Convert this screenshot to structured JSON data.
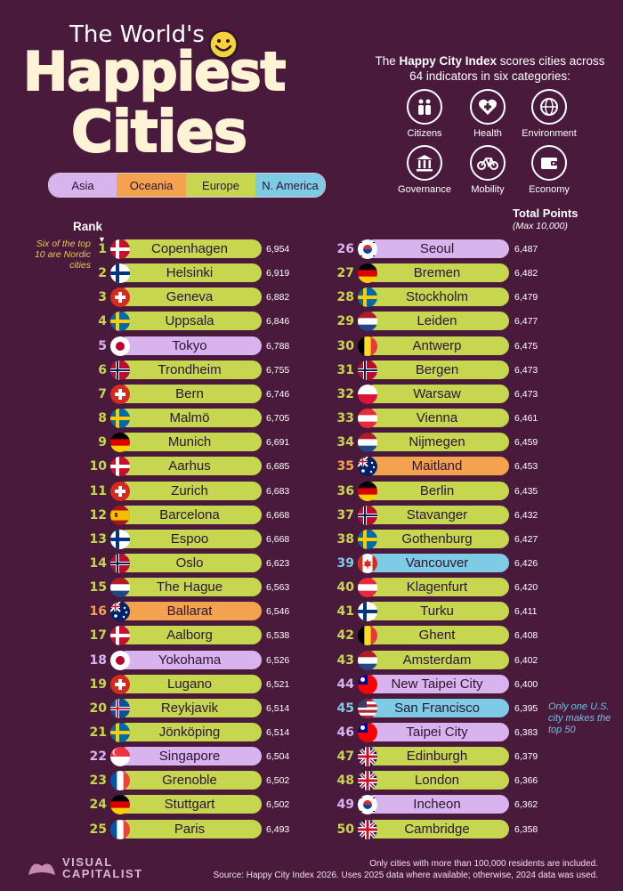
{
  "header": {
    "title_small": "The World's",
    "title_big_1": "Happiest",
    "title_big_2": "Cities"
  },
  "intro": {
    "prefix": "The ",
    "bold": "Happy City Index",
    "rest": " scores cities across 64 indicators in six categories:"
  },
  "categories": [
    {
      "label": "Citizens",
      "icon": "citizens-icon"
    },
    {
      "label": "Health",
      "icon": "health-icon"
    },
    {
      "label": "Environment",
      "icon": "environment-icon"
    },
    {
      "label": "Governance",
      "icon": "governance-icon"
    },
    {
      "label": "Mobility",
      "icon": "mobility-icon"
    },
    {
      "label": "Economy",
      "icon": "economy-icon"
    }
  ],
  "legend": [
    {
      "label": "Asia",
      "color": "#d9b3ee"
    },
    {
      "label": "Oceania",
      "color": "#f4a24e"
    },
    {
      "label": "Europe",
      "color": "#c6d64f"
    },
    {
      "label": "N. America",
      "color": "#7ecbe6"
    }
  ],
  "annotations": {
    "rank_header": "Rank",
    "total_points_header": "Total Points",
    "total_points_sub": "(Max 10,000)",
    "nordic_note": "Six of the top 10 are Nordic cities",
    "us_note": "Only one U.S. city makes the top 50"
  },
  "footer": {
    "brand_1": "VISUAL",
    "brand_2": "CAPITALIST",
    "note": "Only cities with more than 100,000 residents are included.",
    "source": "Source: Happy City Index 2026. Uses 2025 data where available; otherwise, 2024 data was used."
  },
  "chart_data": {
    "type": "table",
    "max_points": 10000,
    "rows": [
      {
        "rank": 1,
        "city": "Copenhagen",
        "points": 6954,
        "region": "Europe",
        "flag": "denmark"
      },
      {
        "rank": 2,
        "city": "Helsinki",
        "points": 6919,
        "region": "Europe",
        "flag": "finland"
      },
      {
        "rank": 3,
        "city": "Geneva",
        "points": 6882,
        "region": "Europe",
        "flag": "switzerland"
      },
      {
        "rank": 4,
        "city": "Uppsala",
        "points": 6846,
        "region": "Europe",
        "flag": "sweden"
      },
      {
        "rank": 5,
        "city": "Tokyo",
        "points": 6788,
        "region": "Asia",
        "flag": "japan"
      },
      {
        "rank": 6,
        "city": "Trondheim",
        "points": 6755,
        "region": "Europe",
        "flag": "norway"
      },
      {
        "rank": 7,
        "city": "Bern",
        "points": 6746,
        "region": "Europe",
        "flag": "switzerland"
      },
      {
        "rank": 8,
        "city": "Malmö",
        "points": 6705,
        "region": "Europe",
        "flag": "sweden"
      },
      {
        "rank": 9,
        "city": "Munich",
        "points": 6691,
        "region": "Europe",
        "flag": "germany"
      },
      {
        "rank": 10,
        "city": "Aarhus",
        "points": 6685,
        "region": "Europe",
        "flag": "denmark"
      },
      {
        "rank": 11,
        "city": "Zurich",
        "points": 6683,
        "region": "Europe",
        "flag": "switzerland"
      },
      {
        "rank": 12,
        "city": "Barcelona",
        "points": 6668,
        "region": "Europe",
        "flag": "spain"
      },
      {
        "rank": 13,
        "city": "Espoo",
        "points": 6668,
        "region": "Europe",
        "flag": "finland"
      },
      {
        "rank": 14,
        "city": "Oslo",
        "points": 6623,
        "region": "Europe",
        "flag": "norway"
      },
      {
        "rank": 15,
        "city": "The Hague",
        "points": 6563,
        "region": "Europe",
        "flag": "netherlands"
      },
      {
        "rank": 16,
        "city": "Ballarat",
        "points": 6546,
        "region": "Oceania",
        "flag": "australia"
      },
      {
        "rank": 17,
        "city": "Aalborg",
        "points": 6538,
        "region": "Europe",
        "flag": "denmark"
      },
      {
        "rank": 18,
        "city": "Yokohama",
        "points": 6526,
        "region": "Asia",
        "flag": "japan"
      },
      {
        "rank": 19,
        "city": "Lugano",
        "points": 6521,
        "region": "Europe",
        "flag": "switzerland"
      },
      {
        "rank": 20,
        "city": "Reykjavik",
        "points": 6514,
        "region": "Europe",
        "flag": "iceland"
      },
      {
        "rank": 21,
        "city": "Jönköping",
        "points": 6514,
        "region": "Europe",
        "flag": "sweden"
      },
      {
        "rank": 22,
        "city": "Singapore",
        "points": 6504,
        "region": "Asia",
        "flag": "singapore"
      },
      {
        "rank": 23,
        "city": "Grenoble",
        "points": 6502,
        "region": "Europe",
        "flag": "france"
      },
      {
        "rank": 24,
        "city": "Stuttgart",
        "points": 6502,
        "region": "Europe",
        "flag": "germany"
      },
      {
        "rank": 25,
        "city": "Paris",
        "points": 6493,
        "region": "Europe",
        "flag": "france"
      },
      {
        "rank": 26,
        "city": "Seoul",
        "points": 6487,
        "region": "Asia",
        "flag": "south-korea"
      },
      {
        "rank": 27,
        "city": "Bremen",
        "points": 6482,
        "region": "Europe",
        "flag": "germany"
      },
      {
        "rank": 28,
        "city": "Stockholm",
        "points": 6479,
        "region": "Europe",
        "flag": "sweden"
      },
      {
        "rank": 29,
        "city": "Leiden",
        "points": 6477,
        "region": "Europe",
        "flag": "netherlands"
      },
      {
        "rank": 30,
        "city": "Antwerp",
        "points": 6475,
        "region": "Europe",
        "flag": "belgium"
      },
      {
        "rank": 31,
        "city": "Bergen",
        "points": 6473,
        "region": "Europe",
        "flag": "norway"
      },
      {
        "rank": 32,
        "city": "Warsaw",
        "points": 6473,
        "region": "Europe",
        "flag": "poland"
      },
      {
        "rank": 33,
        "city": "Vienna",
        "points": 6461,
        "region": "Europe",
        "flag": "austria"
      },
      {
        "rank": 34,
        "city": "Nijmegen",
        "points": 6459,
        "region": "Europe",
        "flag": "netherlands"
      },
      {
        "rank": 35,
        "city": "Maitland",
        "points": 6453,
        "region": "Oceania",
        "flag": "australia"
      },
      {
        "rank": 36,
        "city": "Berlin",
        "points": 6435,
        "region": "Europe",
        "flag": "germany"
      },
      {
        "rank": 37,
        "city": "Stavanger",
        "points": 6432,
        "region": "Europe",
        "flag": "norway"
      },
      {
        "rank": 38,
        "city": "Gothenburg",
        "points": 6427,
        "region": "Europe",
        "flag": "sweden"
      },
      {
        "rank": 39,
        "city": "Vancouver",
        "points": 6426,
        "region": "N. America",
        "flag": "canada"
      },
      {
        "rank": 40,
        "city": "Klagenfurt",
        "points": 6420,
        "region": "Europe",
        "flag": "austria"
      },
      {
        "rank": 41,
        "city": "Turku",
        "points": 6411,
        "region": "Europe",
        "flag": "finland"
      },
      {
        "rank": 42,
        "city": "Ghent",
        "points": 6408,
        "region": "Europe",
        "flag": "belgium"
      },
      {
        "rank": 43,
        "city": "Amsterdam",
        "points": 6402,
        "region": "Europe",
        "flag": "netherlands"
      },
      {
        "rank": 44,
        "city": "New Taipei City",
        "points": 6400,
        "region": "Asia",
        "flag": "taiwan"
      },
      {
        "rank": 45,
        "city": "San Francisco",
        "points": 6395,
        "region": "N. America",
        "flag": "usa"
      },
      {
        "rank": 46,
        "city": "Taipei City",
        "points": 6383,
        "region": "Asia",
        "flag": "taiwan"
      },
      {
        "rank": 47,
        "city": "Edinburgh",
        "points": 6379,
        "region": "Europe",
        "flag": "uk"
      },
      {
        "rank": 48,
        "city": "London",
        "points": 6366,
        "region": "Europe",
        "flag": "uk"
      },
      {
        "rank": 49,
        "city": "Incheon",
        "points": 6362,
        "region": "Asia",
        "flag": "south-korea"
      },
      {
        "rank": 50,
        "city": "Cambridge",
        "points": 6358,
        "region": "Europe",
        "flag": "uk"
      }
    ]
  }
}
